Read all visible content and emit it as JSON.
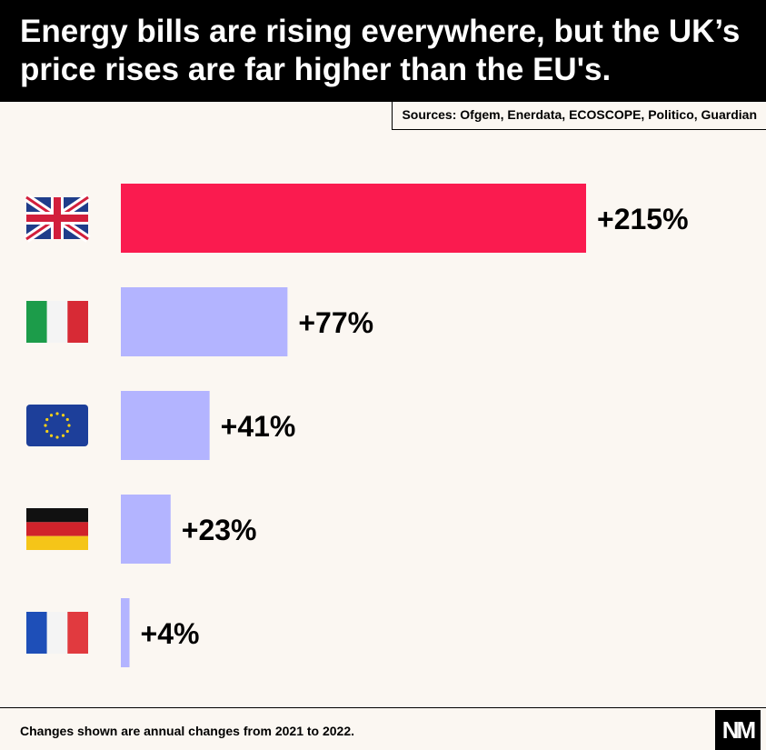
{
  "title": "Energy bills are rising everywhere, but the UK’s price rises are far higher than the EU's.",
  "sources": "Sources: Ofgem, Enerdata, ECOSCOPE, Politico, Guardian",
  "footnote": "Changes shown are annual changes from 2021 to 2022.",
  "logo": "NM",
  "colors": {
    "highlight": "#fa1b4f",
    "default": "#b3b4ff",
    "background": "#fbf7f2",
    "header": "#000000"
  },
  "chart_data": {
    "type": "bar",
    "orientation": "horizontal",
    "categories": [
      "UK",
      "Italy",
      "EU",
      "Germany",
      "France"
    ],
    "category_icons": [
      "uk-flag-icon",
      "italy-flag-icon",
      "eu-flag-icon",
      "germany-flag-icon",
      "france-flag-icon"
    ],
    "values": [
      215,
      77,
      41,
      23,
      4
    ],
    "data_labels": [
      "+215%",
      "+77%",
      "+41%",
      "+23%",
      "+4%"
    ],
    "highlighted_index": 0,
    "xlim": [
      0,
      215
    ],
    "grid": false,
    "legend": "none"
  }
}
